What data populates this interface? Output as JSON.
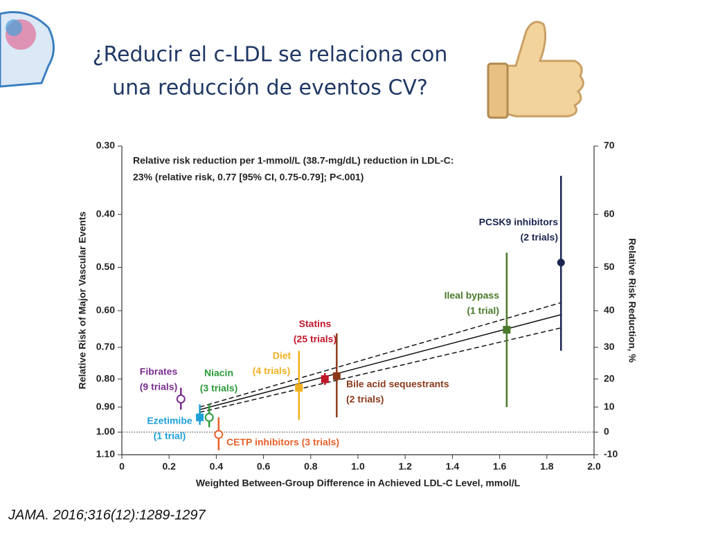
{
  "slide": {
    "title": [
      "¿Reducir el c-LDL se relaciona con",
      "una reducción de eventos CV?"
    ],
    "citation": "JAMA. 2016;316(12):1289-1297"
  },
  "chart_data": {
    "type": "scatter",
    "annotation": [
      "Relative risk reduction per 1-mmol/L (38.7-mg/dL) reduction in LDL-C:",
      "23% (relative risk, 0.77 [95% CI, 0.75-0.79]; P<.001)"
    ],
    "xlabel": "Weighted Between-Group Difference in Achieved LDL-C Level, mmol/L",
    "ylabel": "Relative Risk of Major Vascular Events",
    "y2label": "Relative Risk Reduction, %",
    "xlim": [
      0,
      2
    ],
    "xticks": [
      0,
      0.2,
      0.4,
      0.6,
      0.8,
      {
        "value": 1,
        "label": "1.0"
      },
      1.2,
      1.4,
      1.6,
      1.8,
      {
        "value": 2,
        "label": "2.0"
      }
    ],
    "ylim": [
      0.3,
      1.1
    ],
    "y_log": true,
    "y_reversed": true,
    "yticks": [
      {
        "value": 0.3,
        "label": "0.30"
      },
      {
        "value": 0.4,
        "label": "0.40"
      },
      {
        "value": 0.5,
        "label": "0.50"
      },
      {
        "value": 0.6,
        "label": "0.60"
      },
      {
        "value": 0.7,
        "label": "0.70"
      },
      {
        "value": 0.8,
        "label": "0.80"
      },
      {
        "value": 0.9,
        "label": "0.90"
      },
      {
        "value": 1,
        "label": "1.00"
      },
      {
        "value": 1.1,
        "label": "1.10"
      }
    ],
    "y2lim": [
      70,
      -10
    ],
    "y2ticks": [
      70,
      60,
      50,
      40,
      30,
      20,
      10,
      0,
      -10
    ],
    "reference_line": 1,
    "points": [
      {
        "name": "Fibrates",
        "trials": "(9 trials)",
        "color": "#7b2d8e",
        "marker": "open-circle",
        "x": 0.25,
        "y": 0.87,
        "ci": [
          0.83,
          0.91
        ]
      },
      {
        "name": "Ezetimibe",
        "trials": "(1 trial)",
        "color": "#1ea0d8",
        "marker": "square",
        "x": 0.33,
        "y": 0.94,
        "ci": [
          0.89,
          0.97
        ]
      },
      {
        "name": "Niacin",
        "trials": "(3 trials)",
        "color": "#2a9a3a",
        "marker": "open-circle",
        "x": 0.37,
        "y": 0.94,
        "ci": [
          0.89,
          0.98
        ]
      },
      {
        "name": "CETP inhibitors (3 trials)",
        "color": "#e8622a",
        "marker": "open-circle",
        "x": 0.41,
        "y": 1.01,
        "ci": [
          0.94,
          1.08
        ]
      },
      {
        "name": "Diet",
        "trials": "(4 trials)",
        "color": "#f0b020",
        "marker": "square",
        "x": 0.75,
        "y": 0.83,
        "ci": [
          0.71,
          0.95
        ]
      },
      {
        "name": "Statins",
        "trials": "(25 trials)",
        "color": "#c0162a",
        "marker": "square",
        "x": 0.86,
        "y": 0.8,
        "ci": [
          0.78,
          0.82
        ]
      },
      {
        "name": "Bile acid sequestrants",
        "trials": "(2 trials)",
        "color": "#8b3a1a",
        "marker": "square",
        "x": 0.91,
        "y": 0.79,
        "ci": [
          0.66,
          0.94
        ]
      },
      {
        "name": "Ileal bypass",
        "trials": "(1 trial)",
        "color": "#4a7a2a",
        "marker": "square",
        "x": 1.63,
        "y": 0.65,
        "ci": [
          0.47,
          0.9
        ]
      },
      {
        "name": "PCSK9 inhibitors",
        "trials": "(2 trials)",
        "color": "#1a2550",
        "marker": "circle",
        "x": 1.86,
        "y": 0.49,
        "ci": [
          0.34,
          0.71
        ]
      }
    ],
    "lines": [
      {
        "style": "solid",
        "color": "#111111",
        "x": [
          0.33,
          1.86
        ],
        "values": [
          0.91,
          0.61
        ]
      },
      {
        "style": "dashed",
        "color": "#111111",
        "x": [
          0.33,
          1.86
        ],
        "values": [
          0.9,
          0.58
        ]
      },
      {
        "style": "dashed",
        "color": "#111111",
        "x": [
          0.33,
          1.86
        ],
        "values": [
          0.92,
          0.645
        ]
      }
    ]
  }
}
